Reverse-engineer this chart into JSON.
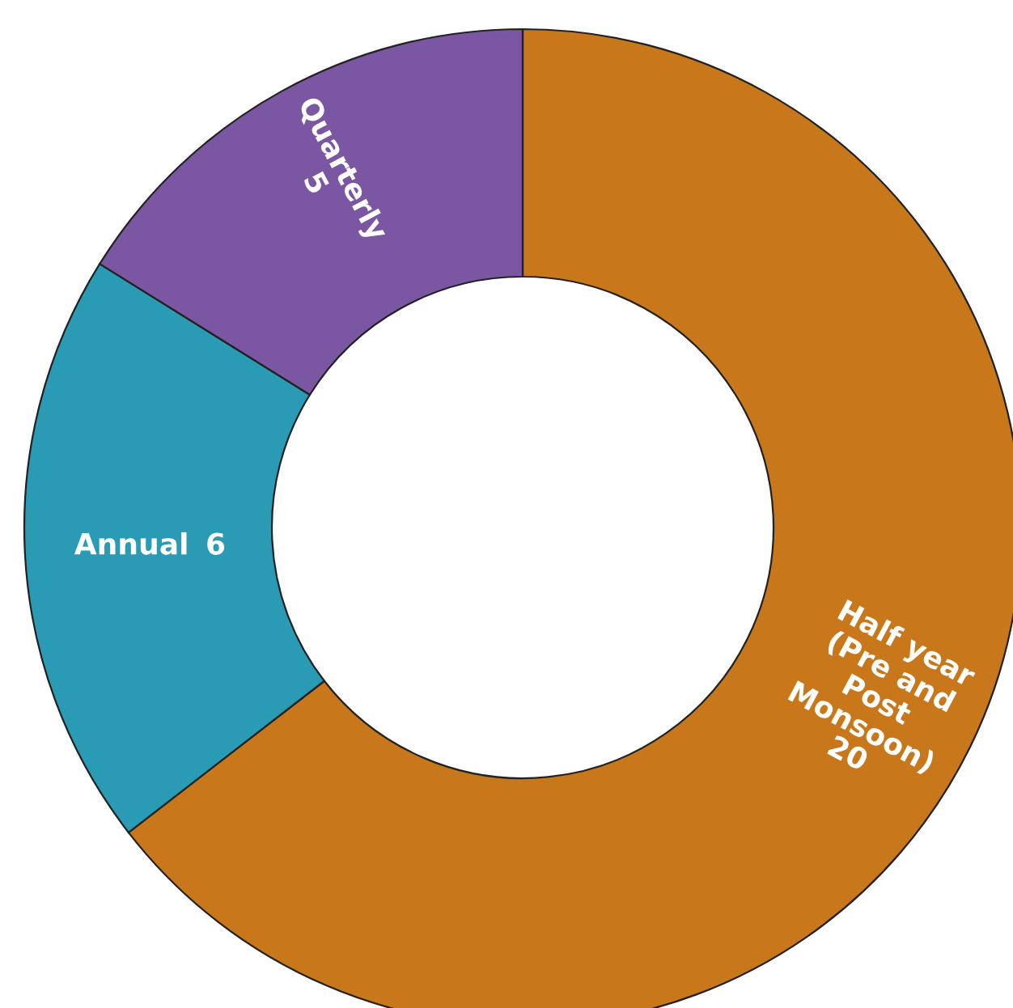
{
  "chart_data": {
    "type": "donut",
    "categories": [
      "Half year (Pre and Post Monsoon)",
      "Annual",
      "Quarterly"
    ],
    "values": [
      20,
      6,
      5
    ],
    "colors": [
      "#c8781a",
      "#2a9bb5",
      "#7b57a3"
    ],
    "data_labels": true
  }
}
